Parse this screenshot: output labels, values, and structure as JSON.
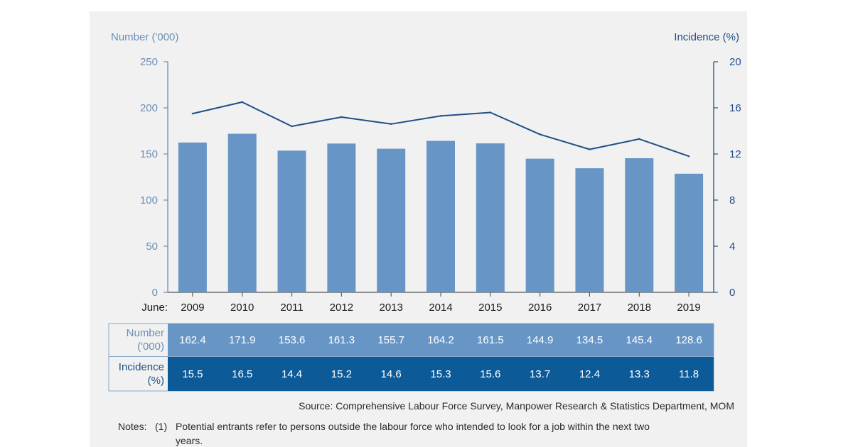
{
  "chart_data": {
    "type": "bar",
    "categories": [
      "2009",
      "2010",
      "2011",
      "2012",
      "2013",
      "2014",
      "2015",
      "2016",
      "2017",
      "2018",
      "2019"
    ],
    "x_prefix": "June:",
    "series": [
      {
        "name": "Number ('000)",
        "type": "bar",
        "axis": "left",
        "color": "#6796c6",
        "values": [
          162.4,
          171.9,
          153.6,
          161.3,
          155.7,
          164.2,
          161.5,
          144.9,
          134.5,
          145.4,
          128.6
        ]
      },
      {
        "name": "Incidence (%)",
        "type": "line",
        "axis": "right",
        "color": "#1f4f86",
        "values": [
          15.5,
          16.5,
          14.4,
          15.2,
          14.6,
          15.3,
          15.6,
          13.7,
          12.4,
          13.3,
          11.8
        ]
      }
    ],
    "ylabel_left": "Number ('000)",
    "ylabel_right": "Incidence (%)",
    "ylim_left": [
      0,
      250
    ],
    "yticks_left": [
      "0",
      "50",
      "100",
      "150",
      "200",
      "250"
    ],
    "ylim_right": [
      0,
      20
    ],
    "yticks_right": [
      "0",
      "4",
      "8",
      "12",
      "16",
      "20"
    ],
    "grid": false,
    "table": {
      "row1_header": [
        "Number",
        "('000)"
      ],
      "row1_values": [
        "162.4",
        "171.9",
        "153.6",
        "161.3",
        "155.7",
        "164.2",
        "161.5",
        "144.9",
        "134.5",
        "145.4",
        "128.6"
      ],
      "row2_header": [
        "Incidence",
        "(%)"
      ],
      "row2_values": [
        "15.5",
        "16.5",
        "14.4",
        "15.2",
        "14.6",
        "15.3",
        "15.6",
        "13.7",
        "12.4",
        "13.3",
        "11.8"
      ],
      "row1_color": "#6796c6",
      "row2_color": "#0d5a98"
    }
  },
  "source": "Source: Comprehensive Labour Force Survey, Manpower Research & Statistics Department, MOM",
  "notes": {
    "label": "Notes:",
    "item_marker": "(1)",
    "line1": "Potential entrants refer to persons outside the labour force who intended to look for a job within the next two",
    "line2": "years."
  }
}
